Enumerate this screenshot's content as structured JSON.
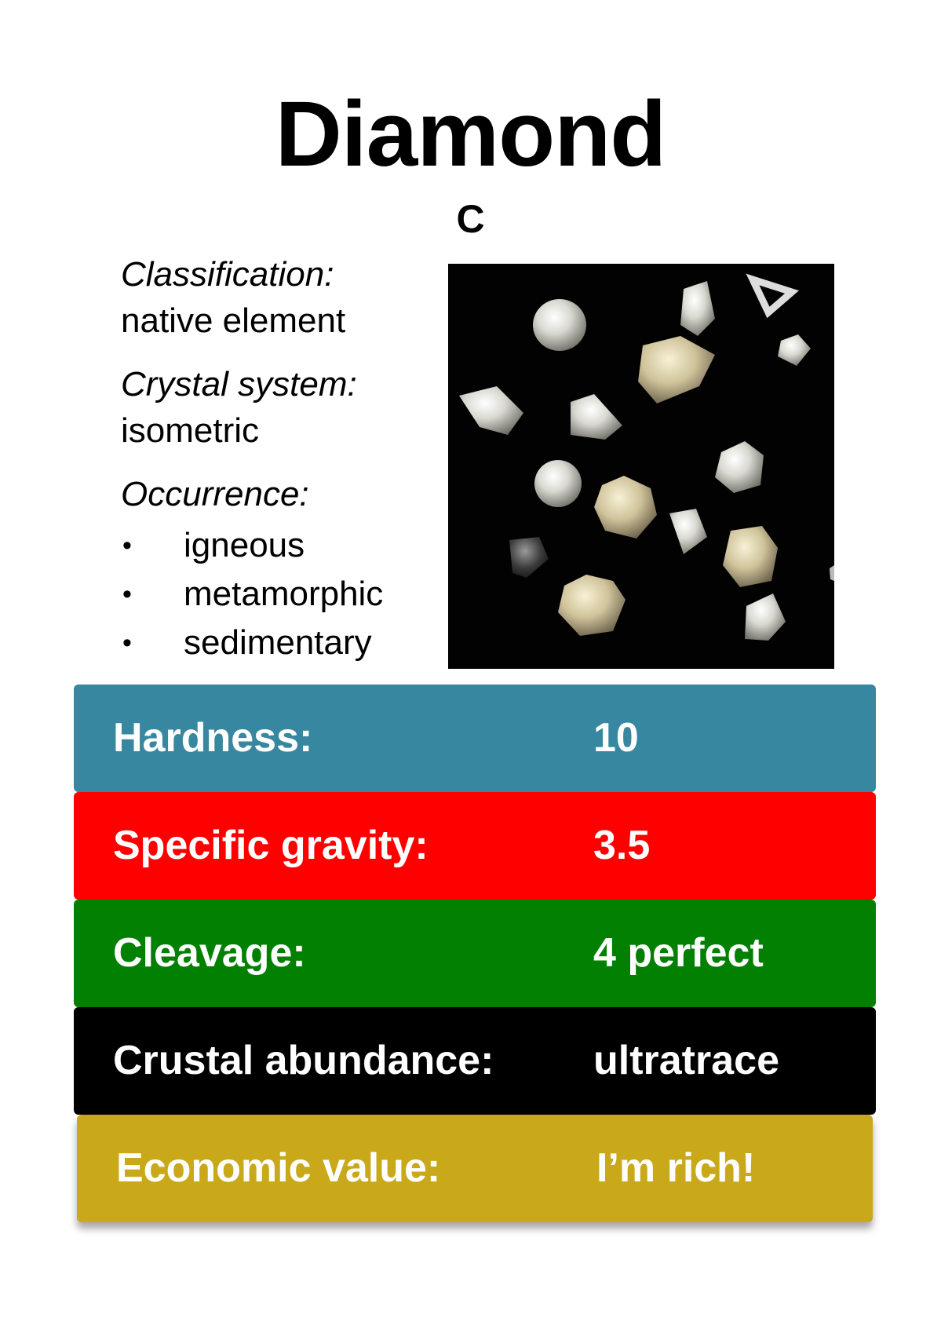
{
  "card": {
    "title": "Diamond",
    "formula": "C"
  },
  "info": {
    "classification_label": "Classification:",
    "classification_value": "native element",
    "crystal_label": "Crystal system:",
    "crystal_value": "isometric",
    "occurrence_label": "Occurrence:",
    "occurrence_items": [
      "igneous",
      "metamorphic",
      "sedimentary"
    ],
    "bullet": "•"
  },
  "photo": {
    "icon": "diamond-crystals-photo",
    "background": "#020202"
  },
  "properties": [
    {
      "label": "Hardness:",
      "value": "10",
      "color": "#3887a0"
    },
    {
      "label": "Specific gravity:",
      "value": "3.5",
      "color": "#ff0000"
    },
    {
      "label": "Cleavage:",
      "value": "4 perfect",
      "color": "#028002"
    },
    {
      "label": "Crustal abundance:",
      "value": "ultratrace",
      "color": "#000000"
    },
    {
      "label": "Economic value:",
      "value": "I’m rich!",
      "color": "#c9a81a"
    }
  ]
}
